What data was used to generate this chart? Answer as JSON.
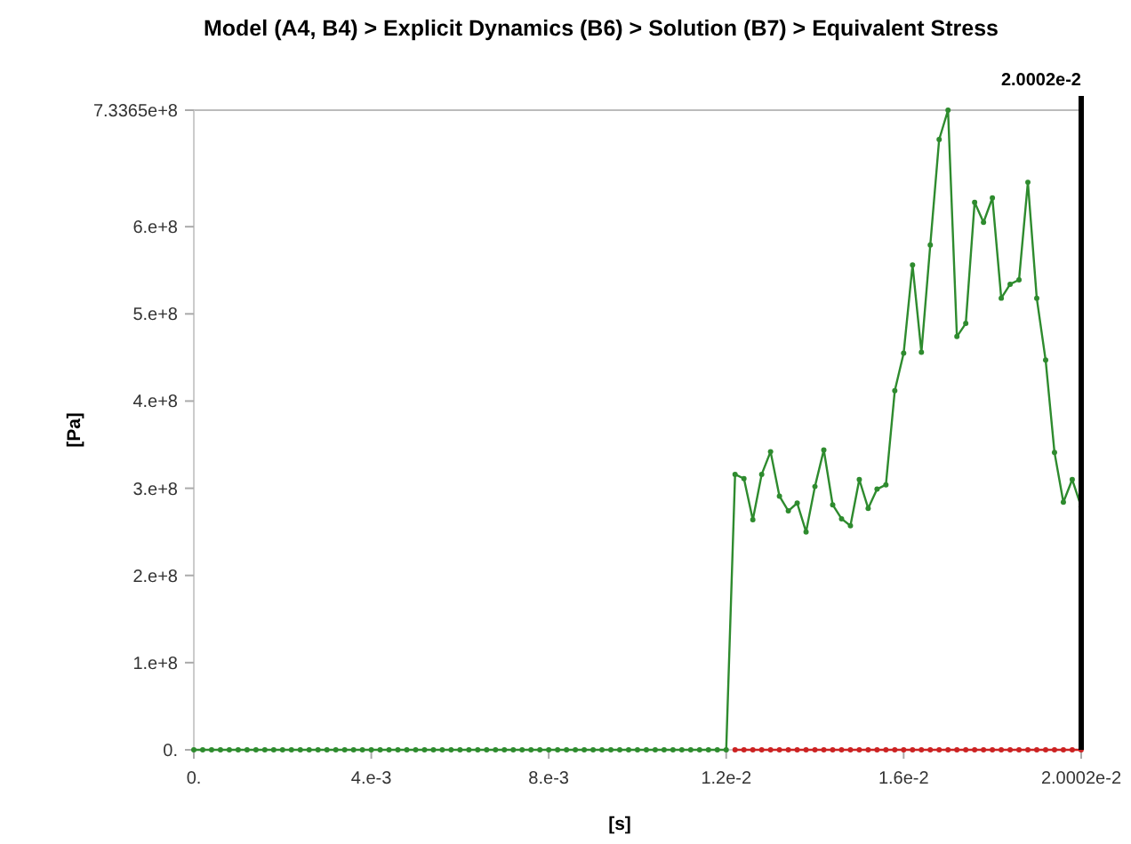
{
  "chart_data": {
    "type": "line",
    "title": "Model (A4, B4) > Explicit Dynamics (B6) > Solution (B7) > Equivalent Stress",
    "xlabel": "[s]",
    "ylabel": "[Pa]",
    "marker": "circle",
    "line_style": "solid",
    "grid": false,
    "xlim": [
      0,
      0.020002
    ],
    "xticks": [
      {
        "value": 0,
        "label": "0."
      },
      {
        "value": 0.004,
        "label": "4.e-3"
      },
      {
        "value": 0.008,
        "label": "8.e-3"
      },
      {
        "value": 0.012,
        "label": "1.2e-2"
      },
      {
        "value": 0.016,
        "label": "1.6e-2"
      },
      {
        "value": 0.020002,
        "label": "2.0002e-2"
      }
    ],
    "ylim": [
      0,
      733650000
    ],
    "yticks": [
      {
        "value": 0,
        "label": "0."
      },
      {
        "value": 100000000,
        "label": "1.e+8"
      },
      {
        "value": 200000000,
        "label": "2.e+8"
      },
      {
        "value": 300000000,
        "label": "3.e+8"
      },
      {
        "value": 400000000,
        "label": "4.e+8"
      },
      {
        "value": 500000000,
        "label": "5.e+8"
      },
      {
        "value": 600000000,
        "label": "6.e+8"
      },
      {
        "value": 733650000,
        "label": "7.3365e+8"
      }
    ],
    "ref_lines": [
      {
        "axis": "x",
        "value": 0.020002,
        "label": "2.0002e-2",
        "color": "#000000"
      }
    ],
    "series": [
      {
        "color": "#2e8b2e",
        "x": [
          0,
          0.0002,
          0.0004,
          0.0006,
          0.0008,
          0.001,
          0.0012,
          0.0014,
          0.0016,
          0.0018,
          0.002,
          0.0022,
          0.0024,
          0.0026,
          0.0028,
          0.003,
          0.0032,
          0.0034,
          0.0036,
          0.0038,
          0.004,
          0.0042,
          0.0044,
          0.0046,
          0.0048,
          0.005,
          0.0052,
          0.0054,
          0.0056,
          0.0058,
          0.006,
          0.0062,
          0.0064,
          0.0066,
          0.0068,
          0.007,
          0.0072,
          0.0074,
          0.0076,
          0.0078,
          0.008,
          0.0082,
          0.0084,
          0.0086,
          0.0088,
          0.009,
          0.0092,
          0.0094,
          0.0096,
          0.0098,
          0.01,
          0.0102,
          0.0104,
          0.0106,
          0.0108,
          0.011,
          0.0112,
          0.0114,
          0.0116,
          0.0118,
          0.012,
          0.0122,
          0.0124,
          0.0126,
          0.0128,
          0.013,
          0.0132,
          0.0134,
          0.0136,
          0.0138,
          0.014,
          0.0142,
          0.0144,
          0.0146,
          0.0148,
          0.015,
          0.0152,
          0.0154,
          0.0156,
          0.0158,
          0.016,
          0.0162,
          0.0164,
          0.0166,
          0.0168,
          0.017,
          0.0172,
          0.0174,
          0.0176,
          0.0178,
          0.018,
          0.0182,
          0.0184,
          0.0186,
          0.0188,
          0.019,
          0.0192,
          0.0194,
          0.0196,
          0.0198,
          0.02
        ],
        "values": [
          0,
          0,
          0,
          0,
          0,
          0,
          0,
          0,
          0,
          0,
          0,
          0,
          0,
          0,
          0,
          0,
          0,
          0,
          0,
          0,
          0,
          0,
          0,
          0,
          0,
          0,
          0,
          0,
          0,
          0,
          0,
          0,
          0,
          0,
          0,
          0,
          0,
          0,
          0,
          0,
          0,
          0,
          0,
          0,
          0,
          0,
          0,
          0,
          0,
          0,
          0,
          0,
          0,
          0,
          0,
          0,
          0,
          0,
          0,
          0,
          0,
          316000000,
          311000000,
          264000000,
          316000000,
          342000000,
          291000000,
          274000000,
          283000000,
          250000000,
          302000000,
          344000000,
          281000000,
          265000000,
          257000000,
          310000000,
          277000000,
          299000000,
          304000000,
          412000000,
          455000000,
          556000000,
          456000000,
          579000000,
          700000000,
          733650000,
          474000000,
          489000000,
          628000000,
          605000000,
          633000000,
          518000000,
          534000000,
          539000000,
          651000000,
          518000000,
          447000000,
          341000000,
          284000000,
          310000000,
          279000000
        ]
      },
      {
        "color": "#cc2222",
        "x": [
          0.0122,
          0.0124,
          0.0126,
          0.0128,
          0.013,
          0.0132,
          0.0134,
          0.0136,
          0.0138,
          0.014,
          0.0142,
          0.0144,
          0.0146,
          0.0148,
          0.015,
          0.0152,
          0.0154,
          0.0156,
          0.0158,
          0.016,
          0.0162,
          0.0164,
          0.0166,
          0.0168,
          0.017,
          0.0172,
          0.0174,
          0.0176,
          0.0178,
          0.018,
          0.0182,
          0.0184,
          0.0186,
          0.0188,
          0.019,
          0.0192,
          0.0194,
          0.0196,
          0.0198,
          0.02
        ],
        "values": [
          0,
          0,
          0,
          0,
          0,
          0,
          0,
          0,
          0,
          0,
          0,
          0,
          0,
          0,
          0,
          0,
          0,
          0,
          0,
          0,
          0,
          0,
          0,
          0,
          0,
          0,
          0,
          0,
          0,
          0,
          0,
          0,
          0,
          0,
          0,
          0,
          0,
          0,
          0,
          0
        ]
      }
    ]
  }
}
